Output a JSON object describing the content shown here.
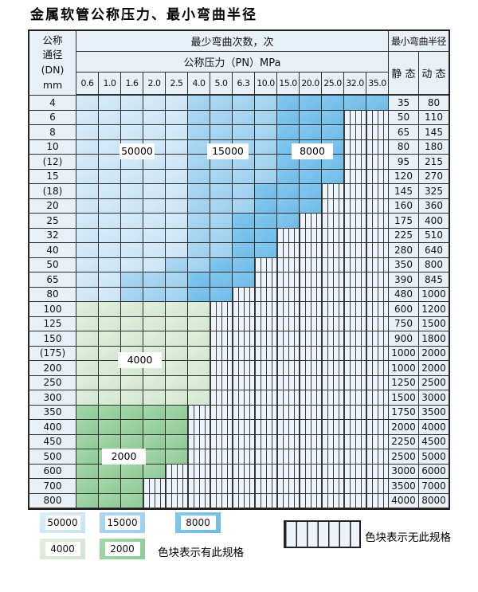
{
  "page": {
    "title": "金属软管公称压力、最小弯曲半径"
  },
  "table": {
    "dn_header_lines": [
      "公称",
      "通径",
      "(DN)",
      "mm"
    ],
    "cycles_header": "最少弯曲次数，次",
    "pressure_header": "公称压力（PN）MPa",
    "radius_header": "最小弯曲半径",
    "static_header": "静 态",
    "dynamic_header": "动 态",
    "pressure_columns": [
      "0.6",
      "1.0",
      "1.6",
      "2.0",
      "2.5",
      "4.0",
      "5.0",
      "6.3",
      "10.0",
      "15.0",
      "20.0",
      "25.0",
      "32.0",
      "35.0"
    ],
    "rows": [
      {
        "dn": "4",
        "colored": 14,
        "zone": "blue",
        "med": 5,
        "dark": 9,
        "static": "35",
        "dynamic": "80"
      },
      {
        "dn": "6",
        "colored": 12,
        "zone": "blue",
        "med": 5,
        "dark": 9,
        "static": "50",
        "dynamic": "110"
      },
      {
        "dn": "8",
        "colored": 12,
        "zone": "blue",
        "med": 5,
        "dark": 9,
        "static": "65",
        "dynamic": "145"
      },
      {
        "dn": "10",
        "colored": 12,
        "zone": "blue",
        "med": 5,
        "dark": 9,
        "static": "80",
        "dynamic": "180"
      },
      {
        "dn": "(12)",
        "colored": 12,
        "zone": "blue",
        "med": 5,
        "dark": 9,
        "static": "95",
        "dynamic": "215"
      },
      {
        "dn": "15",
        "colored": 12,
        "zone": "blue",
        "med": 5,
        "dark": 9,
        "static": "120",
        "dynamic": "270"
      },
      {
        "dn": "(18)",
        "colored": 11,
        "zone": "blue",
        "med": 5,
        "dark": 8,
        "static": "145",
        "dynamic": "325"
      },
      {
        "dn": "20",
        "colored": 11,
        "zone": "blue",
        "med": 5,
        "dark": 8,
        "static": "160",
        "dynamic": "360"
      },
      {
        "dn": "25",
        "colored": 10,
        "zone": "blue",
        "med": 5,
        "dark": 7,
        "static": "175",
        "dynamic": "400"
      },
      {
        "dn": "32",
        "colored": 9,
        "zone": "blue",
        "med": 5,
        "dark": 7,
        "static": "225",
        "dynamic": "510"
      },
      {
        "dn": "40",
        "colored": 9,
        "zone": "blue",
        "med": 5,
        "dark": 7,
        "static": "280",
        "dynamic": "640"
      },
      {
        "dn": "50",
        "colored": 8,
        "zone": "blue",
        "med": 4,
        "dark": 6,
        "static": "350",
        "dynamic": "800"
      },
      {
        "dn": "65",
        "colored": 8,
        "zone": "blue",
        "med": 2,
        "dark": 5,
        "static": "390",
        "dynamic": "845"
      },
      {
        "dn": "80",
        "colored": 7,
        "zone": "blue",
        "med": 2,
        "dark": 5,
        "static": "480",
        "dynamic": "1000"
      },
      {
        "dn": "100",
        "colored": 6,
        "zone": "green_light",
        "static": "600",
        "dynamic": "1200"
      },
      {
        "dn": "125",
        "colored": 6,
        "zone": "green_light",
        "static": "750",
        "dynamic": "1500"
      },
      {
        "dn": "150",
        "colored": 6,
        "zone": "green_light",
        "static": "900",
        "dynamic": "1800"
      },
      {
        "dn": "(175)",
        "colored": 6,
        "zone": "green_light",
        "static": "1000",
        "dynamic": "2000"
      },
      {
        "dn": "200",
        "colored": 6,
        "zone": "green_light",
        "static": "1000",
        "dynamic": "2000"
      },
      {
        "dn": "250",
        "colored": 6,
        "zone": "green_light",
        "static": "1250",
        "dynamic": "2500"
      },
      {
        "dn": "300",
        "colored": 6,
        "zone": "green_light",
        "static": "1500",
        "dynamic": "3000"
      },
      {
        "dn": "350",
        "colored": 5,
        "zone": "green_dark",
        "static": "1750",
        "dynamic": "3500"
      },
      {
        "dn": "400",
        "colored": 5,
        "zone": "green_dark",
        "static": "2000",
        "dynamic": "4000"
      },
      {
        "dn": "450",
        "colored": 5,
        "zone": "green_dark",
        "static": "2250",
        "dynamic": "4500"
      },
      {
        "dn": "500",
        "colored": 5,
        "zone": "green_dark",
        "static": "2500",
        "dynamic": "5000"
      },
      {
        "dn": "600",
        "colored": 4,
        "zone": "green_dark",
        "static": "3000",
        "dynamic": "6000"
      },
      {
        "dn": "700",
        "colored": 3,
        "zone": "green_dark",
        "static": "3500",
        "dynamic": "7000"
      },
      {
        "dn": "800",
        "colored": 3,
        "zone": "green_dark",
        "static": "4000",
        "dynamic": "8000"
      }
    ]
  },
  "overlay_labels": [
    "50000",
    "15000",
    "8000",
    "4000",
    "2000"
  ],
  "legend": {
    "swatches_row1": [
      {
        "label": "50000",
        "zone": "z-light"
      },
      {
        "label": "15000",
        "zone": "z-med"
      },
      {
        "label": "8000",
        "zone": "z-dark"
      }
    ],
    "swatches_row2": [
      {
        "label": "4000",
        "zone": "g-light"
      },
      {
        "label": "2000",
        "zone": "g-dark"
      }
    ],
    "has_spec_text": "色块表示有此规格",
    "no_spec_text": "色块表示无此规格"
  },
  "colors": {
    "zone_50000": "#d2e8f7",
    "zone_15000": "#a5d3f0",
    "zone_8000": "#79c1ea",
    "zone_4000": "#dcecd7",
    "zone_2000": "#9ad0a0",
    "nospec_bg": "#eef4fb",
    "header_bg": "#e9f1f8",
    "border": "#2f2f2f"
  }
}
